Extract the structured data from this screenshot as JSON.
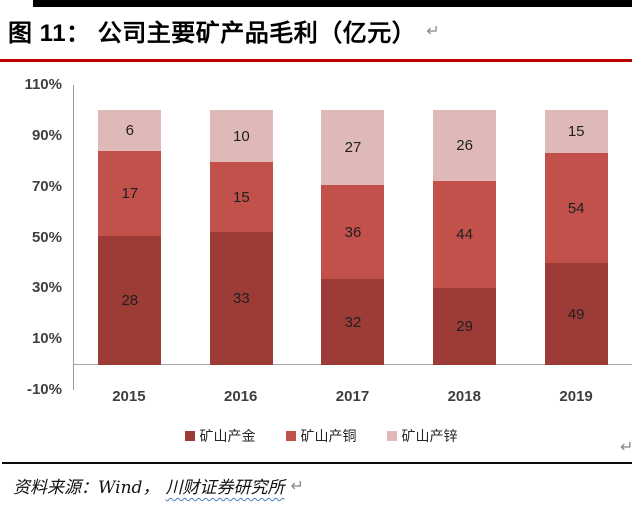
{
  "title": {
    "text": "图 11： 公司主要矿产品毛利（亿元）",
    "return_mark": "↵"
  },
  "chart_data": {
    "type": "bar",
    "variant": "100%-stacked-column",
    "categories": [
      "2015",
      "2016",
      "2017",
      "2018",
      "2019"
    ],
    "series": [
      {
        "name": "矿山产金",
        "color": "#9d3b37",
        "values": [
          28,
          33,
          32,
          29,
          49
        ]
      },
      {
        "name": "矿山产铜",
        "color": "#c2504b",
        "values": [
          17,
          15,
          36,
          44,
          54
        ]
      },
      {
        "name": "矿山产锌",
        "color": "#dfb9b8",
        "values": [
          6,
          10,
          27,
          26,
          15
        ]
      }
    ],
    "y_ticks": [
      "110%",
      "90%",
      "70%",
      "50%",
      "30%",
      "10%",
      "-10%"
    ],
    "ylim": [
      -10,
      110
    ],
    "bar_range": [
      0,
      100
    ],
    "grid": false,
    "legend_position": "bottom",
    "value_labels": true
  },
  "chart_return_mark": "↵",
  "source": {
    "prefix": "资料来源：Wind，",
    "highlighted": "川财证券研究所",
    "return_mark": "↵"
  },
  "colors": {
    "title_rule": "#c00000",
    "top_bar": "#000000",
    "axis_line": "#9b9b9b",
    "baseline": "#a6a6a6",
    "tick_text": "#404040",
    "value_text": "#1f1f1f",
    "return_mark": "#8a8a8a",
    "spellcheck_squiggle": "#4a7ebb"
  }
}
